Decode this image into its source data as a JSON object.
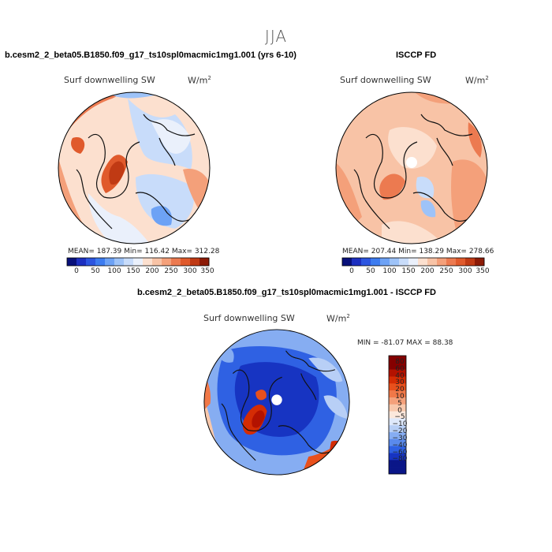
{
  "header": {
    "season": "JJA"
  },
  "panels": [
    {
      "title": "b.cesm2_2_beta05.B1850.f09_g17_ts10spl0macmic1mg1.001 (yrs 6-10)",
      "variable": "Surf downwelling SW",
      "units": "W/m",
      "units_sup": "2",
      "stats": "MEAN= 187.39   Min= 116.42   Max= 312.28"
    },
    {
      "title": "ISCCP FD",
      "variable": "Surf downwelling SW",
      "units": "W/m",
      "units_sup": "2",
      "stats": "MEAN= 207.44   Min= 138.29   Max= 278.66"
    },
    {
      "title": "b.cesm2_2_beta05.B1850.f09_g17_ts10spl0macmic1mg1.001 - ISCCP FD",
      "variable": "Surf downwelling SW",
      "units": "W/m",
      "units_sup": "2",
      "stats": "MIN = -81.07  MAX =  88.38"
    }
  ],
  "chart_data": [
    {
      "type": "heatmap",
      "projection": "north polar stereographic",
      "title": "b.cesm2_2_beta05.B1850.f09_g17_ts10spl0macmic1mg1.001 (yrs 6-10)",
      "variable": "Surf downwelling SW",
      "units": "W/m^2",
      "mean": 187.39,
      "min": 116.42,
      "max": 312.28,
      "colorbar_ticks": [
        "0",
        "50",
        "100",
        "150",
        "200",
        "250",
        "300",
        "350"
      ],
      "colorbar_levels": [
        0,
        25,
        50,
        75,
        100,
        125,
        150,
        175,
        200,
        225,
        250,
        275,
        300,
        325,
        350
      ]
    },
    {
      "type": "heatmap",
      "projection": "north polar stereographic",
      "title": "ISCCP FD",
      "variable": "Surf downwelling SW",
      "units": "W/m^2",
      "mean": 207.44,
      "min": 138.29,
      "max": 278.66,
      "colorbar_ticks": [
        "0",
        "50",
        "100",
        "150",
        "200",
        "250",
        "300",
        "350"
      ],
      "colorbar_levels": [
        0,
        25,
        50,
        75,
        100,
        125,
        150,
        175,
        200,
        225,
        250,
        275,
        300,
        325,
        350
      ]
    },
    {
      "type": "heatmap",
      "projection": "north polar stereographic",
      "title": "b.cesm2_2_beta05.B1850.f09_g17_ts10spl0macmic1mg1.001 - ISCCP FD",
      "variable": "Surf downwelling SW",
      "units": "W/m^2",
      "min": -81.07,
      "max": 88.38,
      "colorbar_labels": [
        "80",
        "60",
        "40",
        "30",
        "20",
        "10",
        "5",
        "0",
        "−5",
        "−10",
        "−20",
        "−30",
        "−40",
        "−60",
        "−80"
      ]
    }
  ],
  "colors": {
    "abs_scale": [
      "#08107a",
      "#1c2fc0",
      "#2c55e0",
      "#3d7cf0",
      "#6da2f5",
      "#9ec3f8",
      "#c8dcfa",
      "#eaf0fb",
      "#fce0cf",
      "#f8c3a6",
      "#f4a07a",
      "#ec7a50",
      "#e05a2c",
      "#c03a14",
      "#8c1a06"
    ],
    "diff_scale": [
      "#850000",
      "#b31200",
      "#d42c04",
      "#e8501c",
      "#f07848",
      "#f4a07a",
      "#f8c8ac",
      "#fce8dc",
      "#dfe9fb",
      "#b8cff6",
      "#86adf2",
      "#5a8aec",
      "#2f61e3",
      "#1734c2",
      "#0a1688"
    ]
  }
}
